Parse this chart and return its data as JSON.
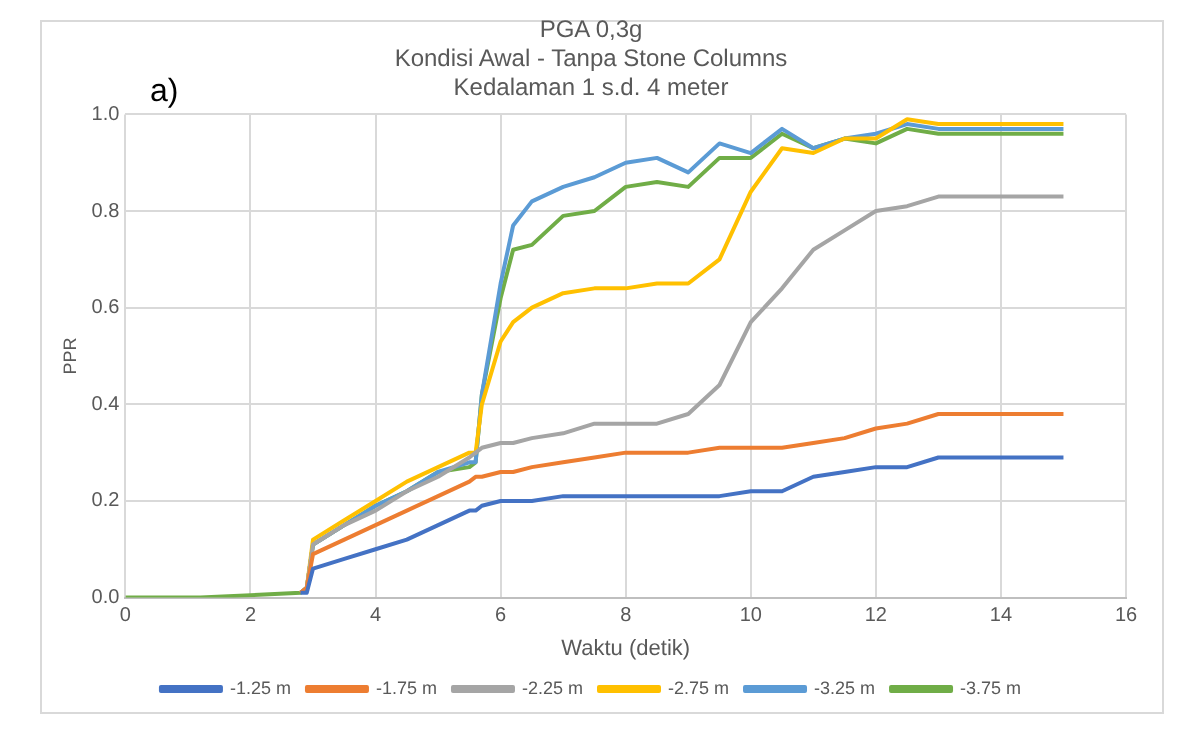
{
  "chart_data": {
    "type": "line",
    "title": "PGA 0,3g\nKondisi Awal - Tanpa Stone Columns\nKedalaman 1 s.d. 4 meter",
    "xlabel": "Waktu (detik)",
    "ylabel": "PPR",
    "annotations": [
      "a)"
    ],
    "x": [
      0,
      1.2,
      2.8,
      2.9,
      3,
      3.5,
      4,
      4.5,
      5,
      5.5,
      5.6,
      5.7,
      6,
      6.2,
      6.5,
      7,
      7.5,
      8,
      8.5,
      9,
      9.5,
      10,
      10.5,
      11,
      11.5,
      12,
      12.5,
      13,
      14,
      15
    ],
    "series": [
      {
        "name": "-1.25 m",
        "color": "#4472c4",
        "values": [
          null,
          null,
          0.01,
          0.01,
          0.06,
          0.08,
          0.1,
          0.12,
          0.15,
          0.18,
          0.18,
          0.19,
          0.2,
          0.2,
          0.2,
          0.21,
          0.21,
          0.21,
          0.21,
          0.21,
          0.21,
          0.22,
          0.22,
          0.25,
          0.26,
          0.27,
          0.27,
          0.29,
          0.29,
          0.29
        ]
      },
      {
        "name": "-1.75 m",
        "color": "#ed7d31",
        "values": [
          null,
          null,
          0.01,
          0.02,
          0.09,
          0.12,
          0.15,
          0.18,
          0.21,
          0.24,
          0.25,
          0.25,
          0.26,
          0.26,
          0.27,
          0.28,
          0.29,
          0.3,
          0.3,
          0.3,
          0.31,
          0.31,
          0.31,
          0.32,
          0.33,
          0.35,
          0.36,
          0.38,
          0.38,
          0.38
        ]
      },
      {
        "name": "-2.25 m",
        "color": "#a5a5a5",
        "values": [
          null,
          null,
          0.01,
          0.02,
          0.11,
          0.15,
          0.18,
          0.22,
          0.25,
          0.29,
          0.3,
          0.31,
          0.32,
          0.32,
          0.33,
          0.34,
          0.36,
          0.36,
          0.36,
          0.38,
          0.44,
          0.57,
          0.64,
          0.72,
          0.76,
          0.8,
          0.81,
          0.83,
          0.83,
          0.83
        ]
      },
      {
        "name": "-2.75 m",
        "color": "#ffc000",
        "values": [
          null,
          null,
          0.01,
          0.02,
          0.12,
          0.16,
          0.2,
          0.24,
          0.27,
          0.3,
          0.3,
          0.4,
          0.53,
          0.57,
          0.6,
          0.63,
          0.64,
          0.64,
          0.65,
          0.65,
          0.7,
          0.84,
          0.93,
          0.92,
          0.95,
          0.95,
          0.99,
          0.98,
          0.98,
          0.98
        ]
      },
      {
        "name": "-3.25 m",
        "color": "#5b9bd5",
        "values": [
          null,
          null,
          0.01,
          0.02,
          0.11,
          0.15,
          0.19,
          0.22,
          0.26,
          0.28,
          0.28,
          0.42,
          0.65,
          0.77,
          0.82,
          0.85,
          0.87,
          0.9,
          0.91,
          0.88,
          0.94,
          0.92,
          0.97,
          0.93,
          0.95,
          0.96,
          0.98,
          0.97,
          0.97,
          0.97
        ]
      },
      {
        "name": "-3.75 m",
        "color": "#70ad47",
        "values": [
          0,
          0,
          0.01,
          0.02,
          0.11,
          0.15,
          0.19,
          0.22,
          0.26,
          0.27,
          0.28,
          0.42,
          0.62,
          0.72,
          0.73,
          0.79,
          0.8,
          0.85,
          0.86,
          0.85,
          0.91,
          0.91,
          0.96,
          0.93,
          0.95,
          0.94,
          0.97,
          0.96,
          0.96,
          0.96
        ]
      }
    ],
    "xlim": [
      0,
      16
    ],
    "xticks": [
      0,
      2,
      4,
      6,
      8,
      10,
      12,
      14,
      16
    ],
    "ylim": [
      0,
      1
    ],
    "yticks": [
      {
        "value": 0,
        "label": "0.0"
      },
      {
        "value": 0.2,
        "label": "0.2"
      },
      {
        "value": 0.4,
        "label": "0.4"
      },
      {
        "value": 0.6,
        "label": "0.6"
      },
      {
        "value": 0.8,
        "label": "0.8"
      },
      {
        "value": 1,
        "label": "1.0"
      }
    ],
    "grid": true,
    "legend": "bottom",
    "marker": "none",
    "line_style": "solid"
  }
}
